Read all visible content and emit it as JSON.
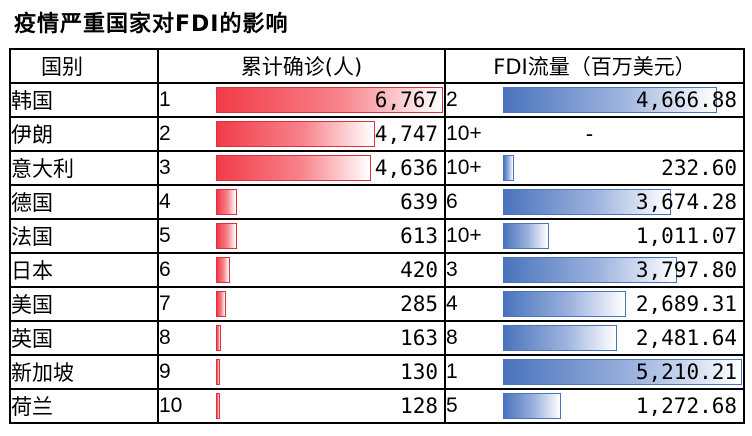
{
  "title": "疫情严重国家对FDI的影响",
  "headers": {
    "country": "国别",
    "cases": "累计确诊(人)",
    "fdi": "FDI流量（百万美元）"
  },
  "colors": {
    "case_bar": "#f23b48",
    "fdi_bar": "#4a73bd"
  },
  "rows": [
    {
      "country": "韩国",
      "case_rank": "1",
      "cases": "6,767",
      "case_value": 6767,
      "fdi_rank": "2",
      "fdi": "4,666.88",
      "fdi_value": 4666.88
    },
    {
      "country": "伊朗",
      "case_rank": "2",
      "cases": "4,747",
      "case_value": 4747,
      "fdi_rank": "10+",
      "fdi": "-",
      "fdi_value": null
    },
    {
      "country": "意大利",
      "case_rank": "3",
      "cases": "4,636",
      "case_value": 4636,
      "fdi_rank": "10+",
      "fdi": "232.60",
      "fdi_value": 232.6
    },
    {
      "country": "德国",
      "case_rank": "4",
      "cases": "639",
      "case_value": 639,
      "fdi_rank": "6",
      "fdi": "3,674.28",
      "fdi_value": 3674.28
    },
    {
      "country": "法国",
      "case_rank": "5",
      "cases": "613",
      "case_value": 613,
      "fdi_rank": "10+",
      "fdi": "1,011.07",
      "fdi_value": 1011.07
    },
    {
      "country": "日本",
      "case_rank": "6",
      "cases": "420",
      "case_value": 420,
      "fdi_rank": "3",
      "fdi": "3,797.80",
      "fdi_value": 3797.8
    },
    {
      "country": "美国",
      "case_rank": "7",
      "cases": "285",
      "case_value": 285,
      "fdi_rank": "4",
      "fdi": "2,689.31",
      "fdi_value": 2689.31
    },
    {
      "country": "英国",
      "case_rank": "8",
      "cases": "163",
      "case_value": 163,
      "fdi_rank": "8",
      "fdi": "2,481.64",
      "fdi_value": 2481.64
    },
    {
      "country": "新加坡",
      "case_rank": "9",
      "cases": "130",
      "case_value": 130,
      "fdi_rank": "1",
      "fdi": "5,210.21",
      "fdi_value": 5210.21
    },
    {
      "country": "荷兰",
      "case_rank": "10",
      "cases": "128",
      "case_value": 128,
      "fdi_rank": "5",
      "fdi": "1,272.68",
      "fdi_value": 1272.68
    }
  ]
}
